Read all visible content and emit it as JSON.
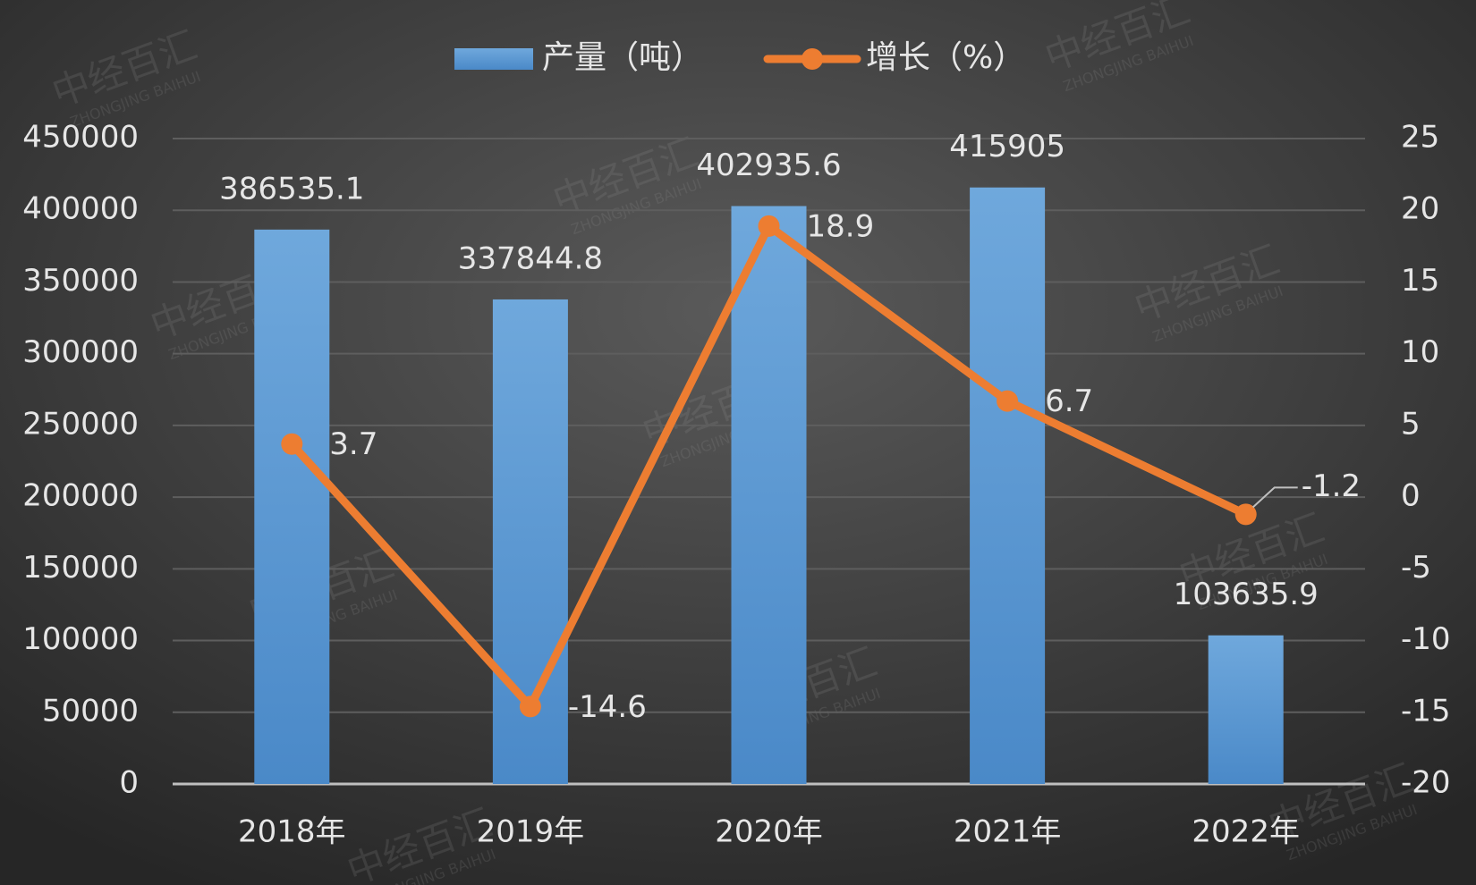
{
  "chart_data": {
    "type": "bar",
    "categories": [
      "2018年",
      "2019年",
      "2020年",
      "2021年",
      "2022年"
    ],
    "series": [
      {
        "name": "产量（吨）",
        "type": "bar",
        "color": "#5b9bd5",
        "values": [
          386535.1,
          337844.8,
          402935.6,
          415905,
          103635.9
        ]
      },
      {
        "name": "增长（%）",
        "type": "line",
        "axis": "y2",
        "color": "#ed7d31",
        "values": [
          3.7,
          -14.6,
          18.9,
          6.7,
          -1.2
        ]
      }
    ],
    "ylim": [
      0,
      450000
    ],
    "yticks": [
      0,
      50000,
      100000,
      150000,
      200000,
      250000,
      300000,
      350000,
      400000,
      450000
    ],
    "y2lim": [
      -20,
      25
    ],
    "y2ticks": [
      -20,
      -15,
      -10,
      -5,
      0,
      5,
      10,
      15,
      20,
      25
    ],
    "grid": true,
    "legend": "top",
    "watermark": "中经百汇",
    "watermark_sub": "ZHONGJING BAIHUI"
  }
}
